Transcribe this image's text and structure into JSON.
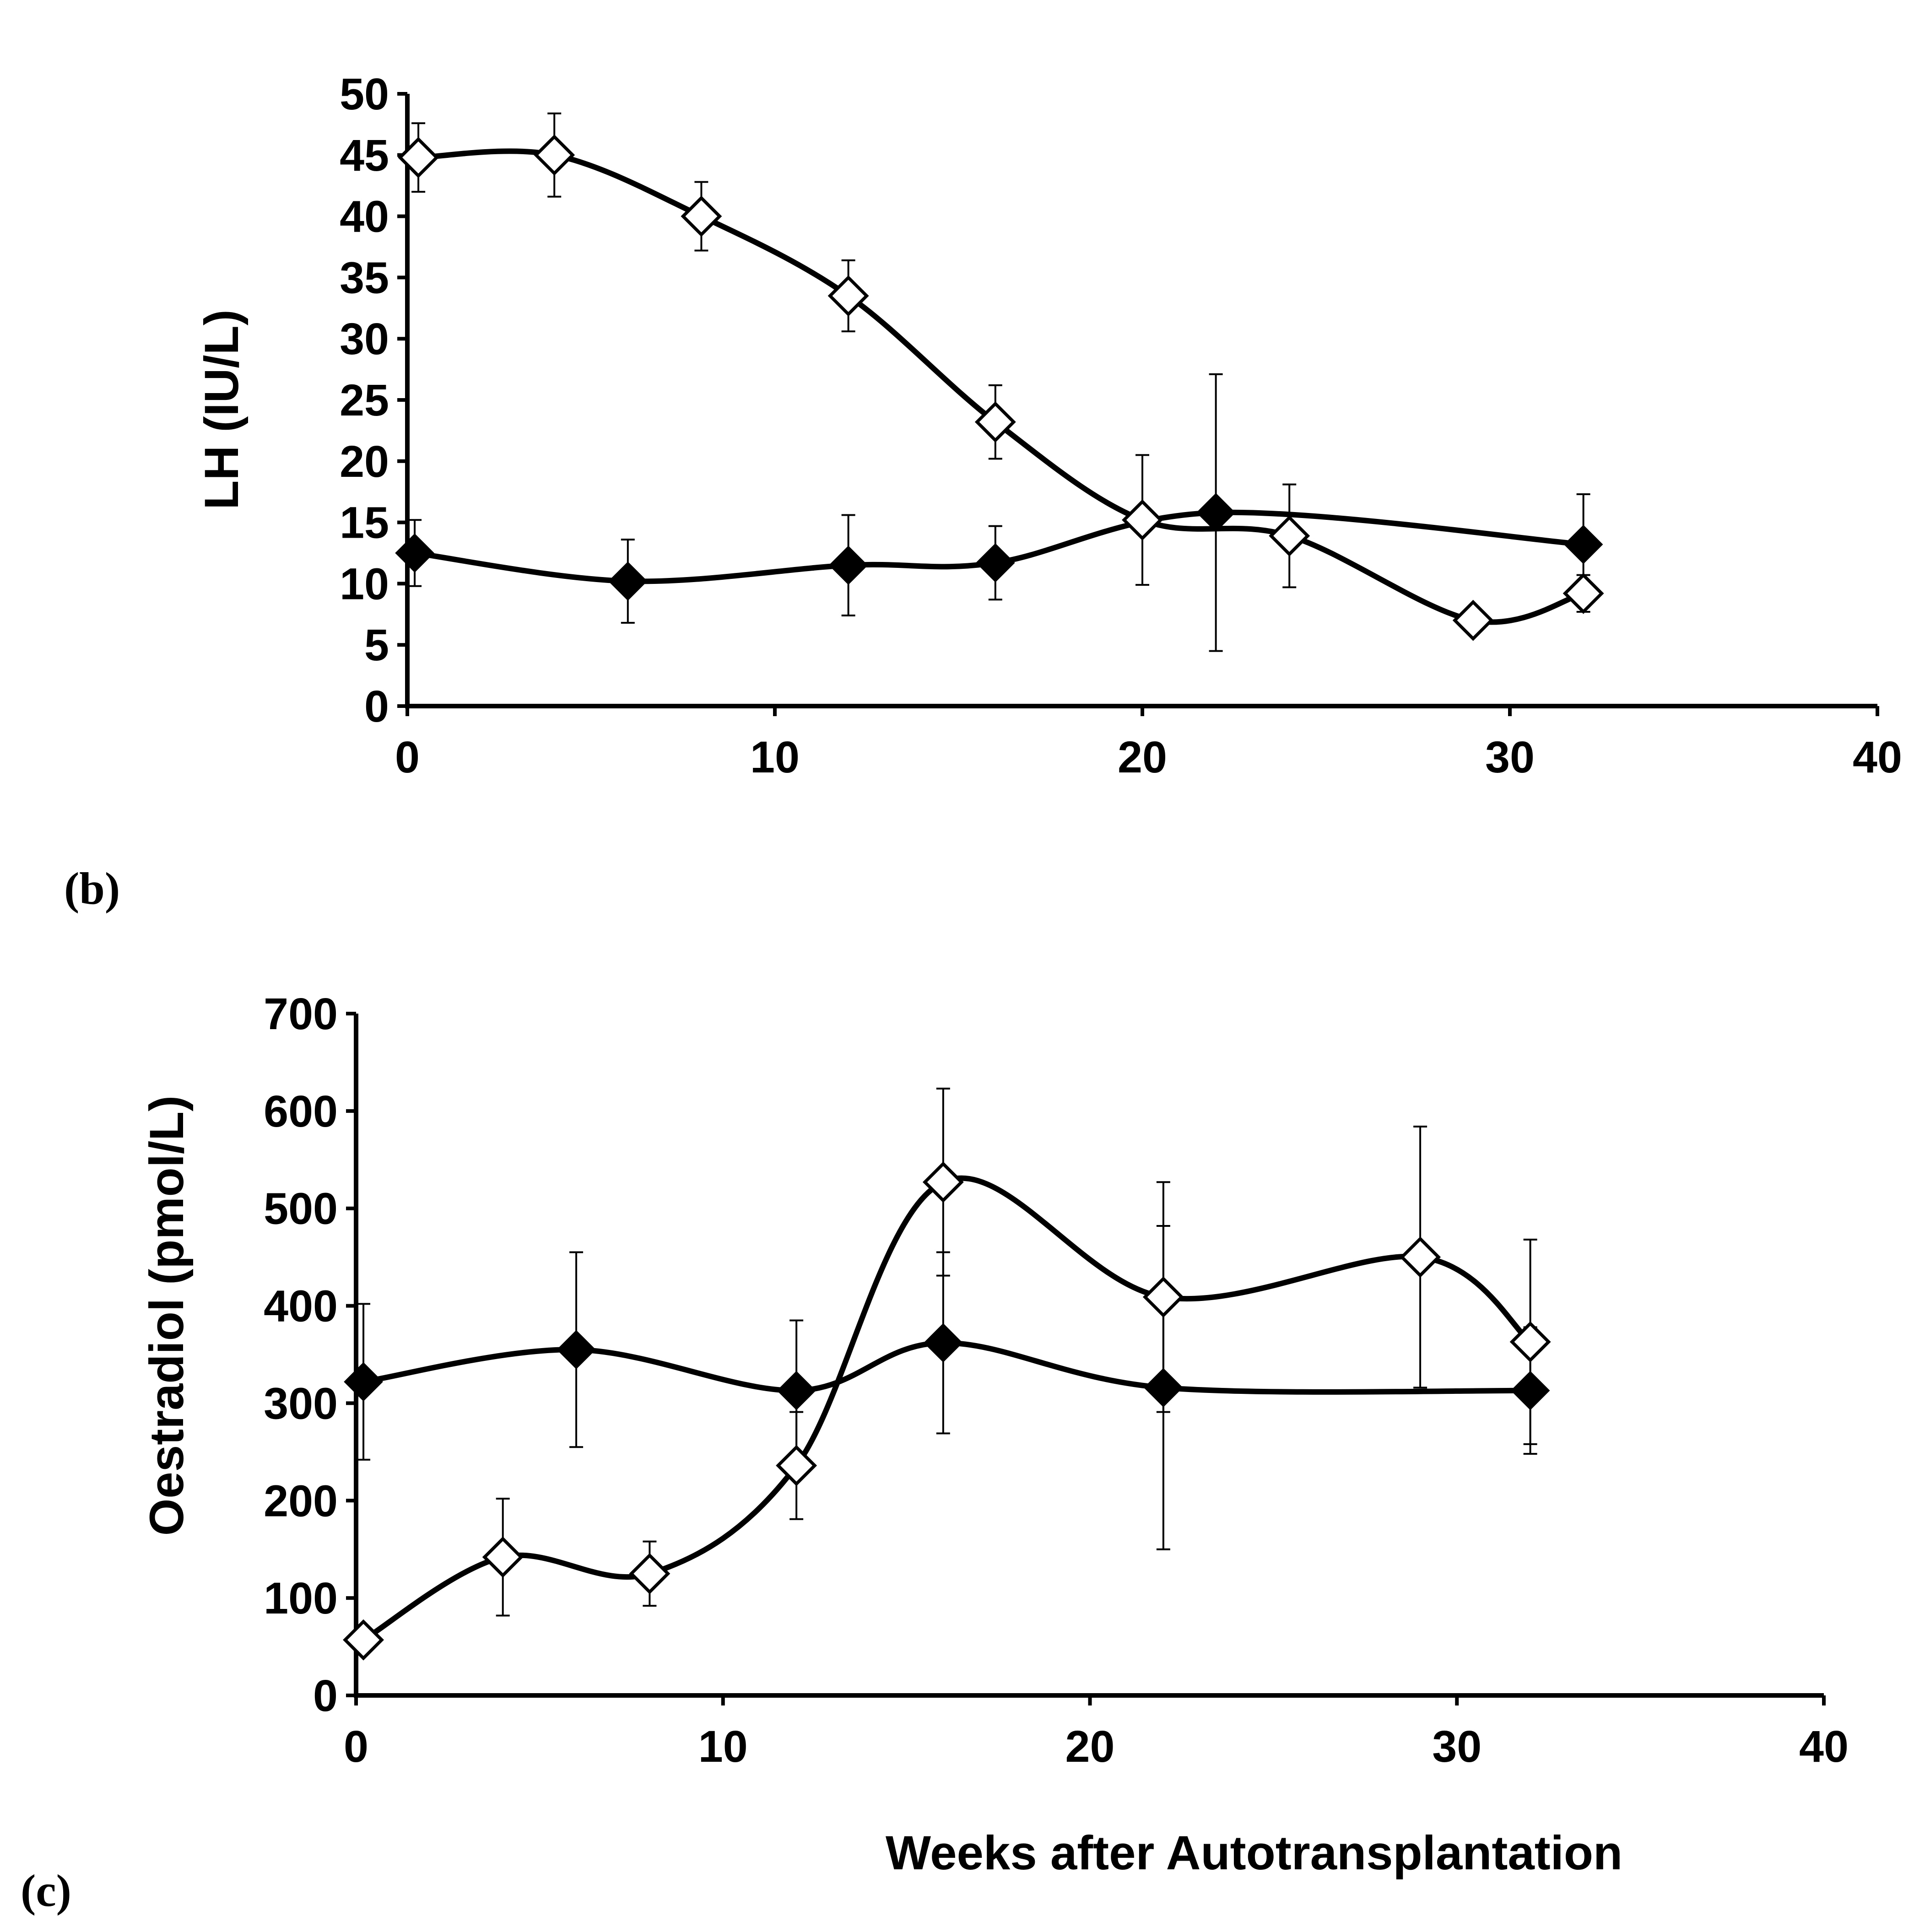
{
  "chart_data": [
    {
      "panel": "(b)",
      "type": "line",
      "title": "",
      "xlabel": "",
      "ylabel": "LH (IU/L)",
      "xlim": [
        0,
        40
      ],
      "ylim": [
        0,
        50
      ],
      "xticks": [
        "0",
        "10",
        "20",
        "30",
        "40"
      ],
      "yticks": [
        "0",
        "5",
        "10",
        "15",
        "20",
        "25",
        "30",
        "35",
        "40",
        "45",
        "50"
      ],
      "grid": false,
      "series": [
        {
          "name": "filled diamonds",
          "marker": "filled-diamond",
          "x": [
            0.2,
            6,
            12,
            16,
            22,
            32
          ],
          "y": [
            12.5,
            10.2,
            11.5,
            11.7,
            15.8,
            13.2
          ],
          "err_low": [
            2.7,
            3.4,
            4.1,
            3.0,
            11.3,
            4.1
          ],
          "err_high": [
            2.7,
            3.4,
            4.1,
            3.0,
            11.3,
            4.1
          ]
        },
        {
          "name": "open diamonds",
          "marker": "open-diamond",
          "x": [
            0.3,
            4,
            8,
            12,
            16,
            20,
            24,
            29,
            32
          ],
          "y": [
            44.8,
            45.0,
            40.0,
            33.5,
            23.2,
            15.2,
            13.9,
            7.0,
            9.2
          ],
          "err_low": [
            2.8,
            3.4,
            2.8,
            2.9,
            3.0,
            5.3,
            4.2,
            0.5,
            1.5
          ],
          "err_high": [
            2.8,
            3.4,
            2.8,
            2.9,
            3.0,
            5.3,
            4.2,
            0.5,
            1.5
          ]
        }
      ]
    },
    {
      "panel": "(c)",
      "type": "line",
      "title": "",
      "xlabel": "Weeks after Autotransplantation",
      "ylabel": "Oestradiol (pmol/L)",
      "xlim": [
        0,
        40
      ],
      "ylim": [
        0,
        700
      ],
      "xticks": [
        "0",
        "10",
        "20",
        "30",
        "40"
      ],
      "yticks": [
        "0",
        "100",
        "200",
        "300",
        "400",
        "500",
        "600",
        "700"
      ],
      "grid": false,
      "series": [
        {
          "name": "filled diamonds",
          "marker": "filled-diamond",
          "x": [
            0.2,
            6,
            12,
            16,
            22,
            32
          ],
          "y": [
            322,
            355,
            313,
            362,
            316,
            313
          ],
          "err_low": [
            80,
            100,
            72,
            93,
            166,
            65
          ],
          "err_high": [
            80,
            100,
            72,
            93,
            166,
            65
          ]
        },
        {
          "name": "open diamonds",
          "marker": "open-diamond",
          "x": [
            0.2,
            4,
            8,
            12,
            16,
            22,
            29,
            32
          ],
          "y": [
            57,
            142,
            125,
            236,
            527,
            409,
            450,
            363
          ],
          "err_low": [
            0,
            60,
            33,
            55,
            96,
            118,
            134,
            105
          ],
          "err_high": [
            0,
            60,
            33,
            55,
            96,
            118,
            134,
            105
          ]
        }
      ]
    }
  ]
}
